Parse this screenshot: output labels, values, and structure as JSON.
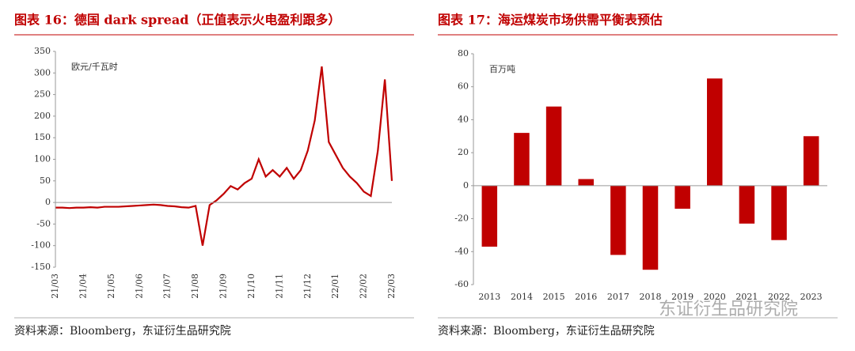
{
  "chart_data": [
    {
      "type": "line",
      "title": "图表 16：德国 dark spread（正值表示火电盈利跟多）",
      "unit": "欧元/千瓦时",
      "categories": [
        "21/03",
        null,
        null,
        null,
        "21/04",
        null,
        null,
        null,
        "21/05",
        null,
        null,
        null,
        "21/06",
        null,
        null,
        null,
        "21/07",
        null,
        null,
        null,
        "21/08",
        null,
        null,
        null,
        "21/09",
        null,
        null,
        null,
        "21/10",
        null,
        null,
        null,
        "21/11",
        null,
        null,
        null,
        "21/12",
        null,
        null,
        null,
        "22/01",
        null,
        null,
        null,
        "22/02",
        null,
        null,
        null,
        "22/03"
      ],
      "series": [
        {
          "name": "dark spread",
          "color": "#c00000",
          "values": [
            -12,
            -12,
            -13,
            -12,
            -12,
            -11,
            -12,
            -10,
            -10,
            -10,
            -9,
            -8,
            -7,
            -6,
            -5,
            -6,
            -8,
            -9,
            -11,
            -12,
            -8,
            -100,
            -6,
            5,
            20,
            38,
            30,
            45,
            55,
            100,
            60,
            75,
            60,
            80,
            55,
            75,
            120,
            190,
            315,
            140,
            110,
            80,
            60,
            45,
            25,
            15,
            120,
            285,
            50
          ]
        }
      ],
      "ylim": [
        -150,
        350
      ],
      "yticks": [
        -150,
        -100,
        -50,
        0,
        50,
        100,
        150,
        200,
        250,
        300,
        350
      ],
      "source": "资料来源：Bloomberg，东证衍生品研究院"
    },
    {
      "type": "bar",
      "title": "图表 17：海运煤炭市场供需平衡表预估",
      "unit": "百万吨",
      "categories": [
        "2013",
        "2014",
        "2015",
        "2016",
        "2017",
        "2018",
        "2019",
        "2020",
        "2021",
        "2022",
        "2023"
      ],
      "values": [
        -37,
        32,
        48,
        4,
        -42,
        -51,
        -14,
        65,
        -23,
        -33,
        30
      ],
      "color": "#c00000",
      "ylim": [
        -60,
        80
      ],
      "yticks": [
        -60,
        -40,
        -20,
        0,
        20,
        40,
        60,
        80
      ],
      "source": "资料来源：Bloomberg，东证衍生品研究院"
    }
  ],
  "watermark": "东证衍生品研究院"
}
